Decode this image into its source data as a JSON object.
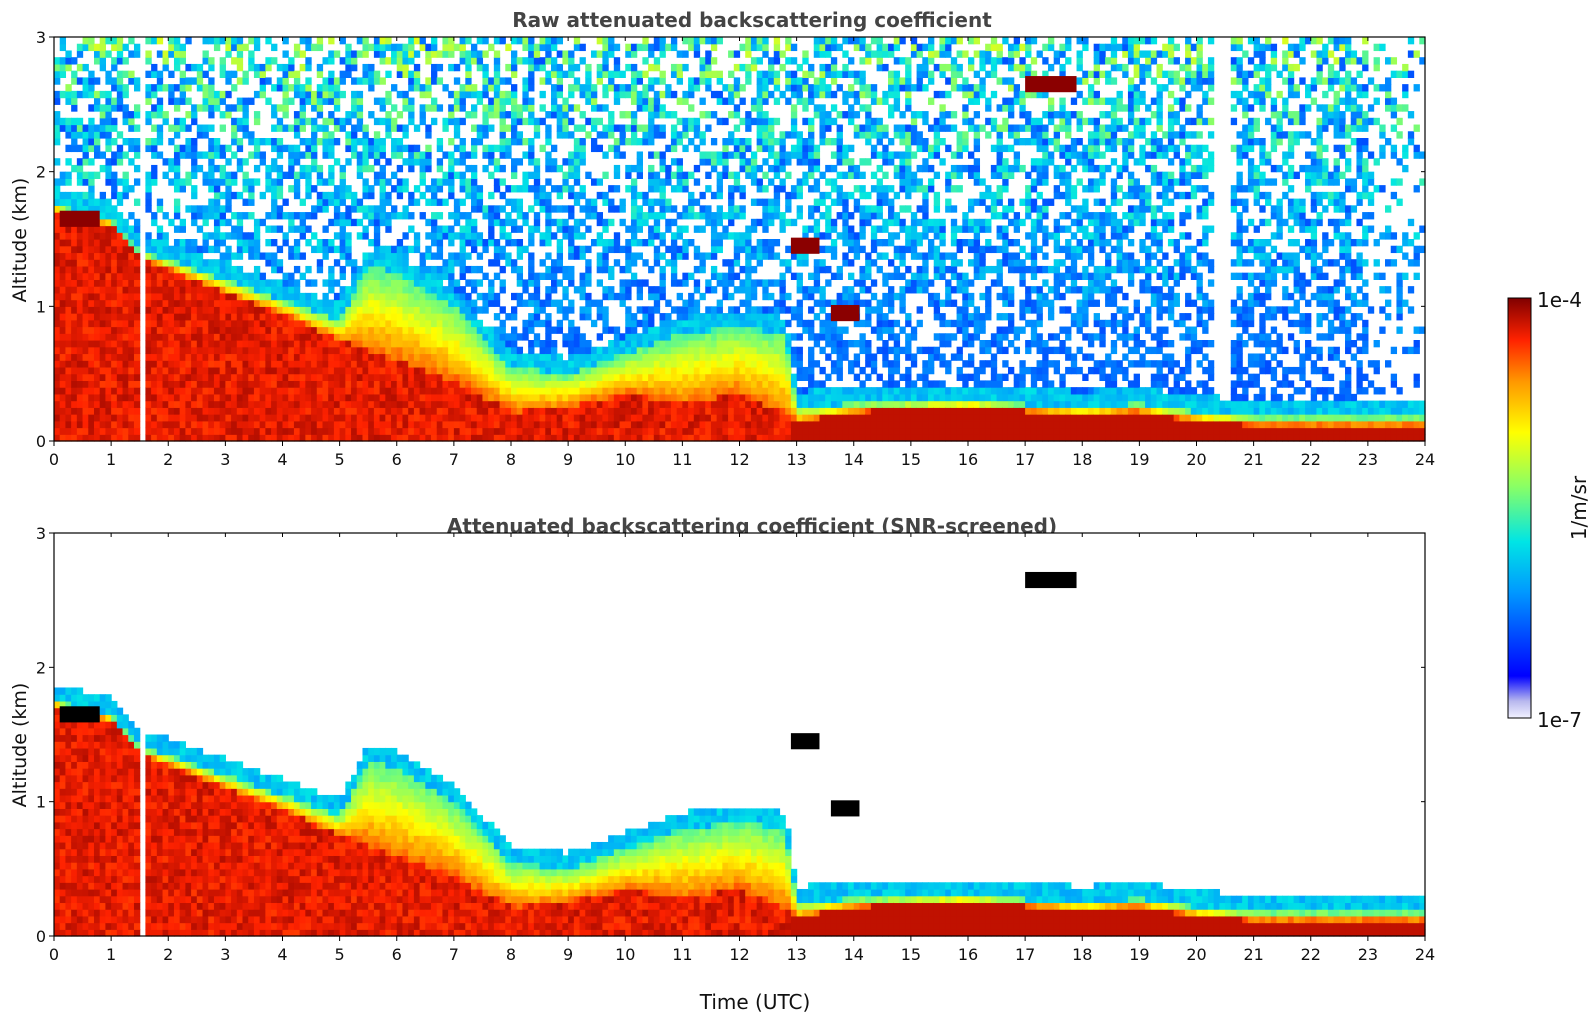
{
  "figure": {
    "colorbar": {
      "label": "1/m/sr",
      "max_label": "1e-4",
      "min_label": "1e-7",
      "scale": "log",
      "colormap": "jet"
    }
  },
  "chart_data": [
    {
      "type": "heatmap",
      "title": "Raw attenuated backscattering coefficient",
      "xlabel": "",
      "ylabel": "Altitude (km)",
      "xlim": [
        0,
        24
      ],
      "ylim": [
        0,
        3
      ],
      "xticks": [
        "0",
        "1",
        "2",
        "3",
        "4",
        "5",
        "6",
        "7",
        "8",
        "9",
        "10",
        "11",
        "12",
        "13",
        "14",
        "15",
        "16",
        "17",
        "18",
        "19",
        "20",
        "21",
        "22",
        "23",
        "24"
      ],
      "yticks": [
        "0",
        "1",
        "2",
        "3"
      ],
      "color_range": [
        "1e-7",
        "1e-4"
      ],
      "features": {
        "boundary_layer_top_km": [
          [
            0,
            1.75
          ],
          [
            1,
            1.65
          ],
          [
            1.5,
            1.4
          ],
          [
            2,
            1.35
          ],
          [
            3,
            1.2
          ],
          [
            4,
            1.05
          ],
          [
            5,
            0.9
          ],
          [
            5.5,
            1.3
          ],
          [
            6,
            1.25
          ],
          [
            7,
            1.0
          ],
          [
            8,
            0.55
          ],
          [
            9,
            0.5
          ],
          [
            10,
            0.65
          ],
          [
            11,
            0.8
          ],
          [
            12,
            0.85
          ],
          [
            12.8,
            0.8
          ],
          [
            13,
            0.25
          ],
          [
            14,
            0.28
          ],
          [
            16,
            0.3
          ],
          [
            18,
            0.25
          ],
          [
            19,
            0.28
          ],
          [
            20,
            0.22
          ],
          [
            21,
            0.18
          ],
          [
            24,
            0.18
          ]
        ],
        "aerosol_layer_top_km": [
          [
            0,
            1.72
          ],
          [
            1,
            1.6
          ],
          [
            1.6,
            1.35
          ],
          [
            3,
            1.1
          ],
          [
            4,
            0.95
          ],
          [
            5,
            0.75
          ],
          [
            6,
            0.6
          ],
          [
            7,
            0.45
          ],
          [
            8,
            0.22
          ],
          [
            9,
            0.25
          ],
          [
            10,
            0.35
          ],
          [
            11,
            0.28
          ],
          [
            12,
            0.35
          ],
          [
            12.8,
            0.2
          ],
          [
            13,
            0.14
          ],
          [
            14,
            0.22
          ],
          [
            16,
            0.25
          ],
          [
            18,
            0.2
          ],
          [
            19,
            0.22
          ],
          [
            20,
            0.15
          ],
          [
            21,
            0.12
          ],
          [
            24,
            0.12
          ]
        ],
        "cloud_layers": [
          {
            "t_start": 0.1,
            "t_end": 0.8,
            "altitude_km": 1.65
          },
          {
            "t_start": 12.9,
            "t_end": 13.4,
            "altitude_km": 1.45
          },
          {
            "t_start": 13.6,
            "t_end": 14.1,
            "altitude_km": 0.95
          },
          {
            "t_start": 17.0,
            "t_end": 17.9,
            "altitude_km": 2.65
          }
        ]
      }
    },
    {
      "type": "heatmap",
      "title": "Attenuated backscattering coefficient (SNR-screened)",
      "xlabel": "Time (UTC)",
      "ylabel": "Altitude (km)",
      "xlim": [
        0,
        24
      ],
      "ylim": [
        0,
        3
      ],
      "xticks": [
        "0",
        "1",
        "2",
        "3",
        "4",
        "5",
        "6",
        "7",
        "8",
        "9",
        "10",
        "11",
        "12",
        "13",
        "14",
        "15",
        "16",
        "17",
        "18",
        "19",
        "20",
        "21",
        "22",
        "23",
        "24"
      ],
      "yticks": [
        "0",
        "1",
        "2",
        "3"
      ],
      "color_range": [
        "1e-7",
        "1e-4"
      ]
    }
  ]
}
